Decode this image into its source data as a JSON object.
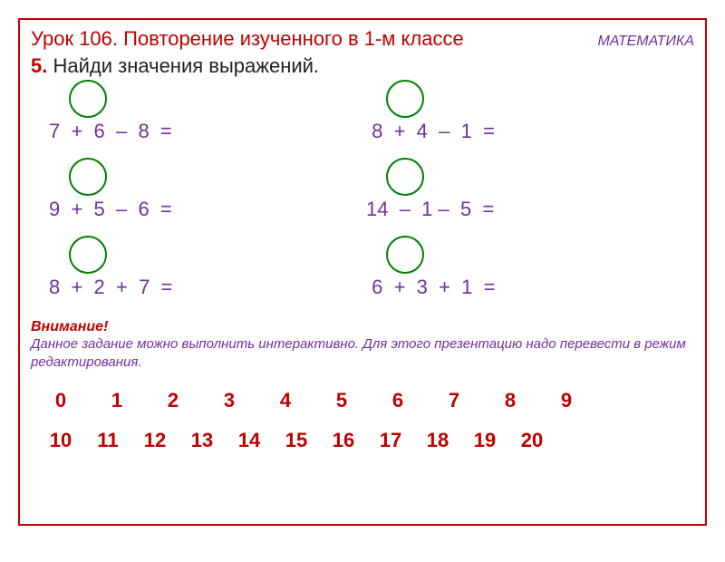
{
  "header": {
    "lesson_title": "Урок 106. Повторение изученного в 1-м классе",
    "subject": "МАТЕМАТИКА"
  },
  "task": {
    "number": "5.",
    "text": " Найди значения выражений."
  },
  "exercises": {
    "left": [
      "7  +  6  –  8  =",
      "9  +  5  –  6  =",
      "8  +  2  +  7  ="
    ],
    "right": [
      " 8  +  4  –  1  =",
      "14  –  1 –  5  =",
      " 6  +  3  +  1  ="
    ]
  },
  "attention": {
    "title": "Внимание!",
    "text": "Данное задание можно выполнить интерактивно. Для этого презентацию надо перевести в режим редактирования."
  },
  "numbers": {
    "row1": [
      "0",
      "1",
      "2",
      "3",
      "4",
      "5",
      "6",
      "7",
      "8",
      "9"
    ],
    "row2": [
      "10",
      "11",
      "12",
      "13",
      "14",
      "15",
      "16",
      "17",
      "18",
      "19",
      "20"
    ]
  },
  "style": {
    "accent_color": "#c00000",
    "expression_color": "#7030a0",
    "circle_border": "#008000",
    "subject_color": "#7030a0",
    "background": "#ffffff"
  }
}
